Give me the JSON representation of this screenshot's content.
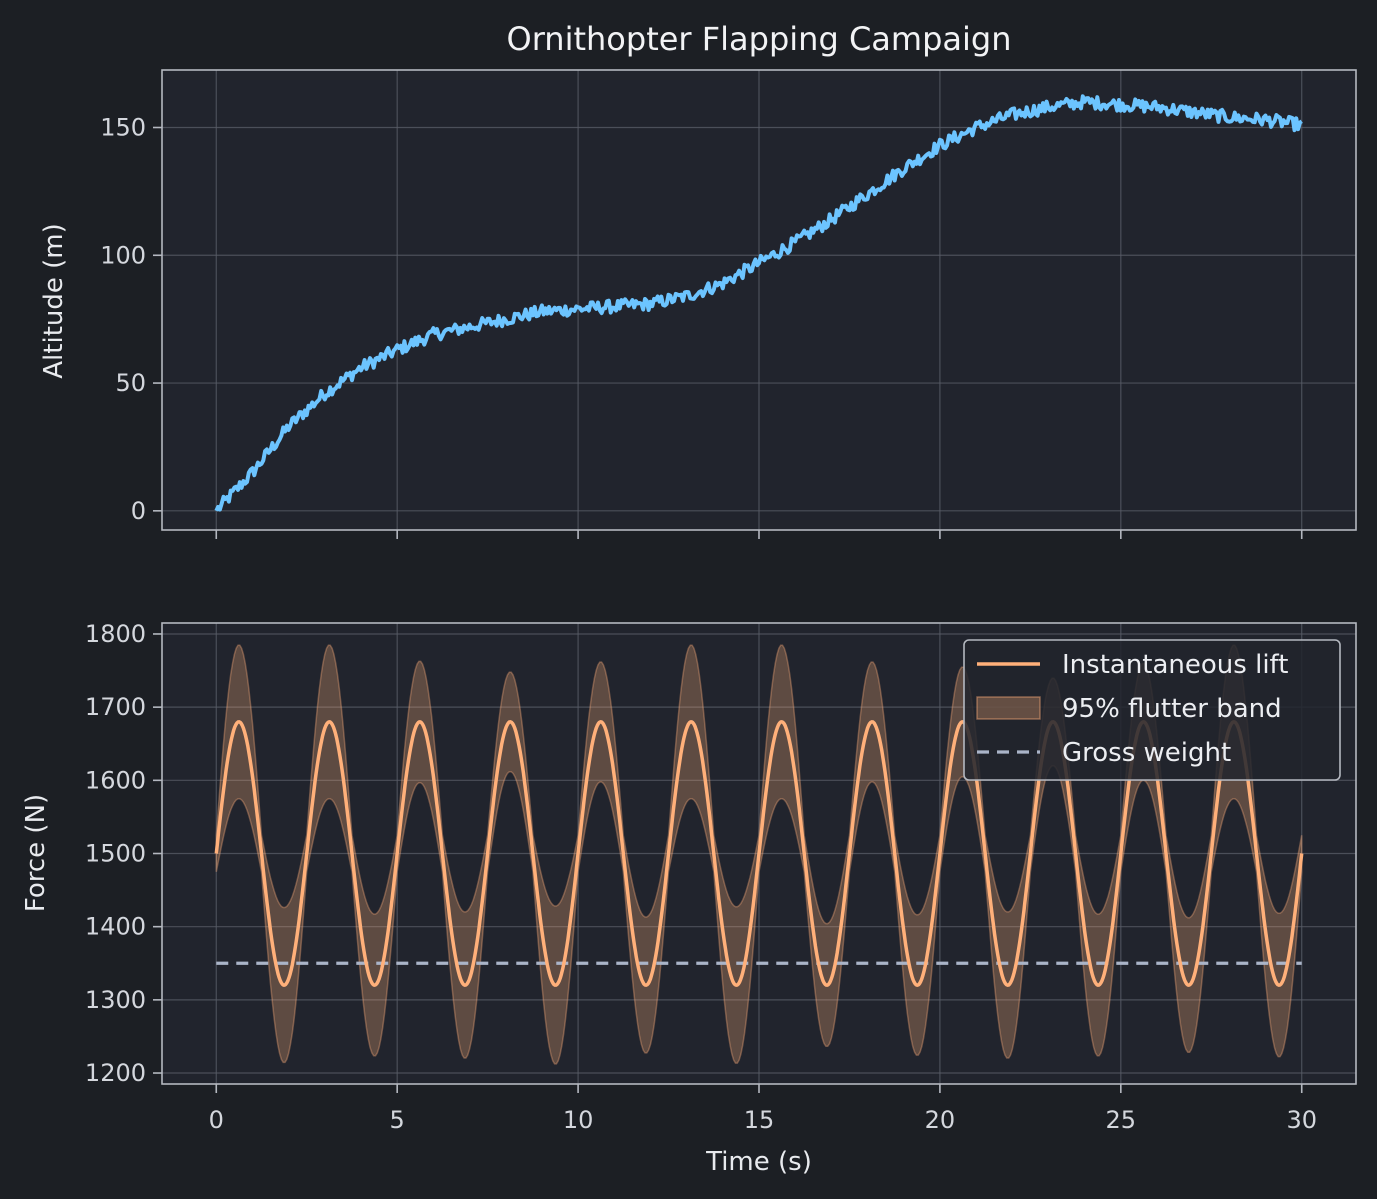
{
  "title": "Ornithopter Flapping Campaign",
  "colors": {
    "background": "#1c1f24",
    "axes_face": "#21242d",
    "grid": "#5a5e68",
    "spine": "#b4b8c0",
    "altitude": "#6cc4ff",
    "lift": "#ffb07a",
    "band": "#ffb07a",
    "weight": "#aab4c8"
  },
  "chart_data": [
    {
      "type": "line",
      "panel": "top",
      "ylabel": "Altitude (m)",
      "xlim": [
        -1.5,
        31.5
      ],
      "ylim": [
        -7.5,
        172.5
      ],
      "xticks": [
        0,
        5,
        10,
        15,
        20,
        25,
        30
      ],
      "yticks": [
        0,
        50,
        100,
        150
      ],
      "grid": true,
      "series": [
        {
          "name": "Altitude",
          "x": [
            0,
            1,
            2,
            3,
            4,
            5,
            6,
            7,
            8,
            9,
            10,
            11,
            12,
            13,
            14,
            15,
            16,
            17,
            18,
            19,
            20,
            21,
            22,
            23,
            24,
            25,
            26,
            27,
            28,
            29,
            30
          ],
          "y": [
            0,
            15,
            33,
            46,
            56,
            63,
            69,
            72,
            75,
            78,
            79,
            80,
            81,
            84,
            89,
            97,
            105,
            114,
            124,
            134,
            143,
            150,
            155,
            158,
            160,
            159,
            158,
            156,
            154,
            153,
            151
          ],
          "noise_amplitude": 2.5
        }
      ]
    },
    {
      "type": "line",
      "panel": "bottom",
      "xlabel": "Time (s)",
      "ylabel": "Force (N)",
      "xlim": [
        -1.5,
        31.5
      ],
      "ylim": [
        1185,
        1815
      ],
      "xticks": [
        0,
        5,
        10,
        15,
        20,
        25,
        30
      ],
      "yticks": [
        1200,
        1300,
        1400,
        1500,
        1600,
        1700,
        1800
      ],
      "grid": true,
      "legend_position": "top-right",
      "series": [
        {
          "name": "Instantaneous lift",
          "kind": "sine",
          "mean": 1500,
          "amplitude": 180,
          "period_s": 2.5,
          "x_range": [
            0,
            30
          ]
        },
        {
          "name": "95% flutter band",
          "kind": "band",
          "around": "Instantaneous lift",
          "peak_highs": [
            1785,
            1785,
            1763,
            1748,
            1762,
            1785,
            1785,
            1762,
            1755,
            1740,
            1760,
            1785
          ],
          "trough_lows": [
            1214,
            1223,
            1220,
            1212,
            1227,
            1213,
            1236,
            1224,
            1220,
            1223,
            1228,
            1222
          ]
        },
        {
          "name": "Gross weight",
          "kind": "hline",
          "y": 1350,
          "style": "dashed"
        }
      ]
    }
  ]
}
